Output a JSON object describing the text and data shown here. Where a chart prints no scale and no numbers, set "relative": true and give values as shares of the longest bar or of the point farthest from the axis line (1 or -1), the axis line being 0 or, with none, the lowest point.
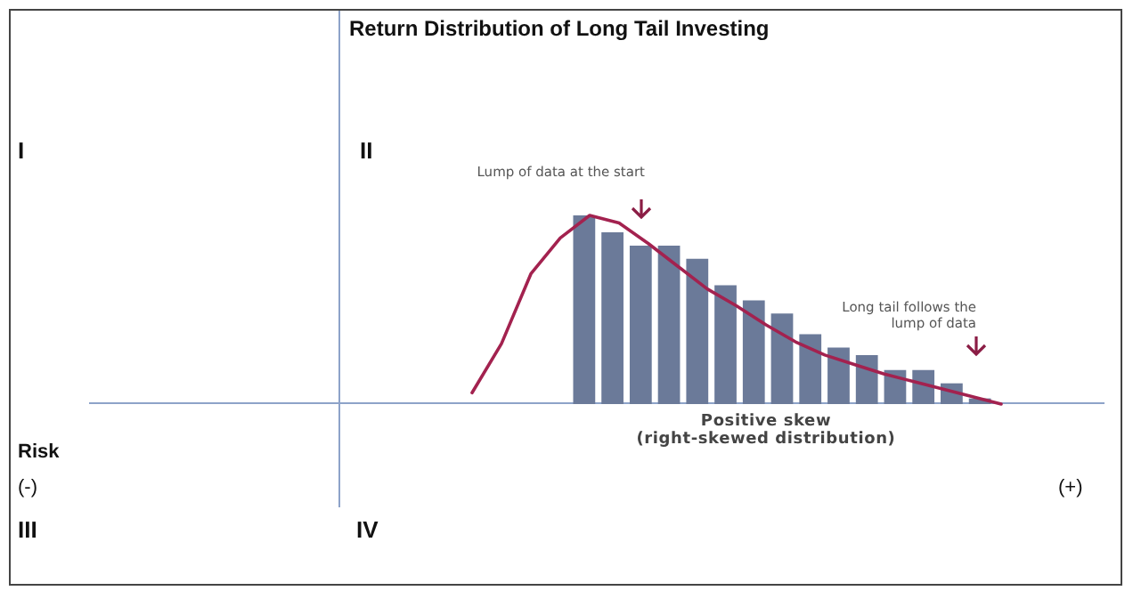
{
  "chart_data": [
    {
      "type": "bar",
      "title": "Return Distribution of Long Tail Investing",
      "xlabel": "Positive skew\n(right-skewed distribution)",
      "relative": true,
      "legend": false,
      "tick_labels": false,
      "categories": [
        null,
        null,
        null,
        null,
        null,
        null,
        null,
        null,
        null,
        null,
        null,
        null,
        null,
        null,
        null
      ],
      "series": [
        {
          "color": "#6b7a99",
          "values": [
            1,
            0.91,
            0.84,
            0.84,
            0.77,
            0.63,
            0.55,
            0.48,
            0.37,
            0.3,
            0.26,
            0.18,
            0.18,
            0.11,
            0.03
          ]
        }
      ],
      "annotations": [
        "Lump of data at the start",
        "Long tail follows the lump of data",
        "I",
        "II",
        "III",
        "IV",
        "Risk",
        "(-)",
        "(+)"
      ]
    },
    {
      "type": "line",
      "relative": true,
      "legend": false,
      "tick_labels": false,
      "marker": "none",
      "categories": [
        null,
        null,
        null,
        null,
        null,
        null,
        null,
        null,
        null,
        null,
        null,
        null,
        null,
        null,
        null,
        null,
        null,
        null,
        null
      ],
      "series": [
        {
          "color": "#a3224f",
          "values": [
            0.06,
            0.32,
            0.69,
            0.88,
            1,
            0.96,
            0.85,
            0.73,
            0.61,
            0.52,
            0.42,
            0.33,
            0.26,
            0.21,
            0.16,
            0.12,
            0.08,
            0.04,
            0
          ]
        }
      ]
    }
  ]
}
